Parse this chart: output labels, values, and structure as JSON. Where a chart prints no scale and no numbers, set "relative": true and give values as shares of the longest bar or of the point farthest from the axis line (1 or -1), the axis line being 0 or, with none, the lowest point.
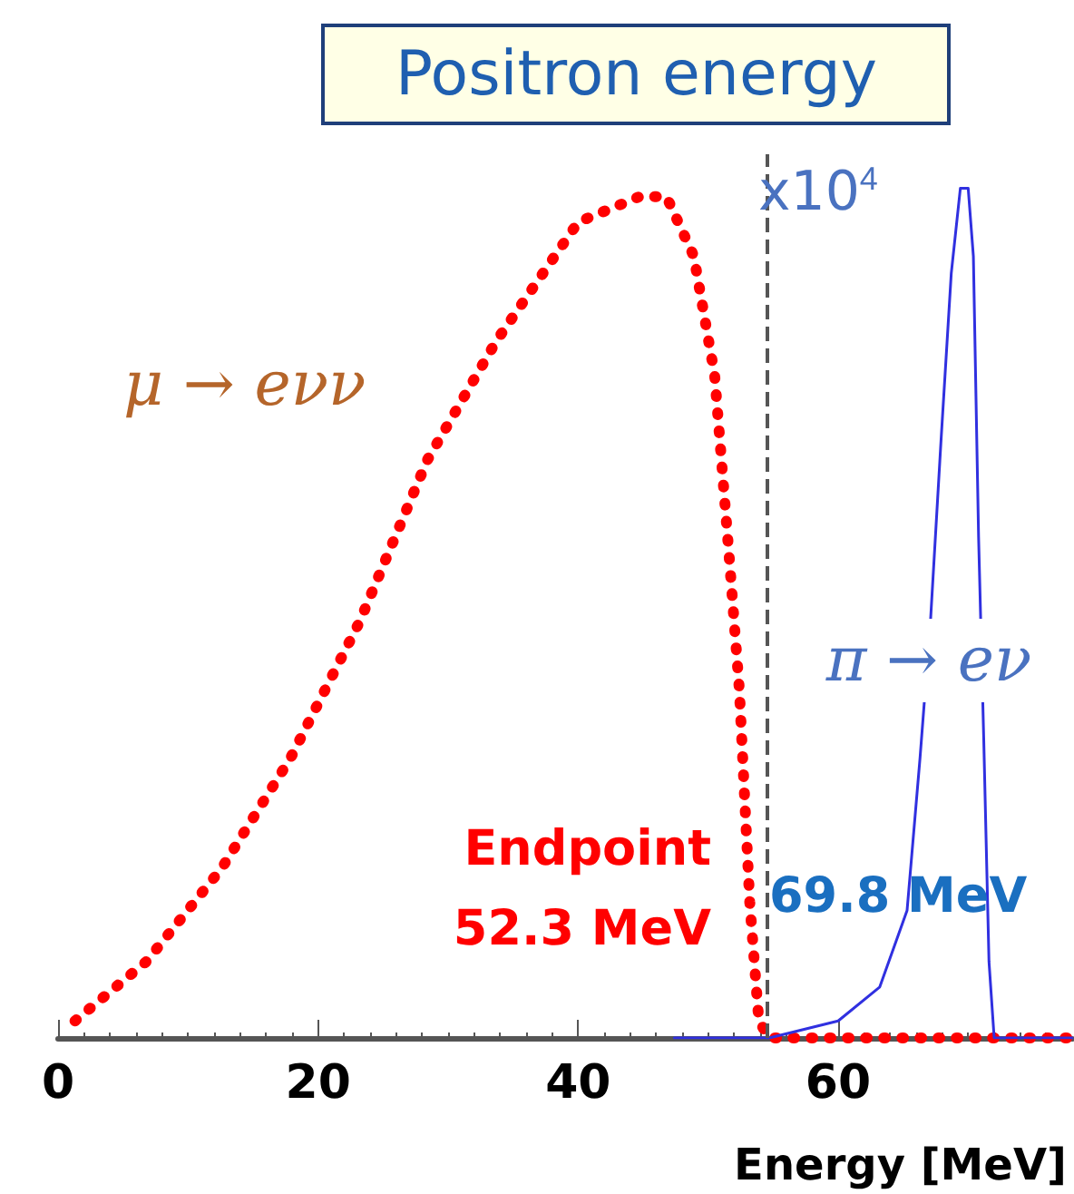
{
  "chart_data": {
    "type": "line",
    "title": "Positron energy",
    "xlabel": "Energy [MeV]",
    "relative": true,
    "marker": "none",
    "xlim": [
      0,
      78
    ],
    "xticks": [
      0,
      20,
      40,
      60
    ],
    "series": [
      {
        "color": "#ff0000",
        "line_style": "dotted",
        "x": [
          1.3,
          6.8,
          12.6,
          17.9,
          23.2,
          28.4,
          33.7,
          40,
          44.7,
          46.8,
          48.9,
          50.5,
          51.6,
          52.4,
          53.2,
          53.9,
          54.7,
          65.3,
          78
        ],
        "values": [
          0.02,
          0.09,
          0.2,
          0.33,
          0.49,
          0.68,
          0.82,
          0.96,
          0.99,
          0.99,
          0.92,
          0.78,
          0.57,
          0.41,
          0.16,
          0.02,
          0,
          0,
          0
        ]
      },
      {
        "color": "#3030e0",
        "line_style": "solid",
        "x": [
          47.4,
          49.5,
          54.7,
          60,
          63.2,
          65.3,
          66.3,
          67.1,
          67.9,
          68.7,
          69.4,
          70,
          70.4,
          70.8,
          71.2,
          71.6,
          72,
          78
        ],
        "values": [
          0,
          0,
          0,
          0.02,
          0.06,
          0.15,
          0.33,
          0.49,
          0.7,
          0.9,
          1,
          1,
          0.92,
          0.59,
          0.35,
          0.09,
          0,
          0
        ]
      }
    ],
    "ref_lines": [
      {
        "axis": "x",
        "value": 54.5,
        "color": "#555555",
        "line_style": "dashed"
      }
    ],
    "annotations": [
      "μ → eνν",
      "x10$^{4}$",
      "π → eν",
      "Endpoint",
      "52.3 MeV",
      "69.8 MeV"
    ]
  }
}
